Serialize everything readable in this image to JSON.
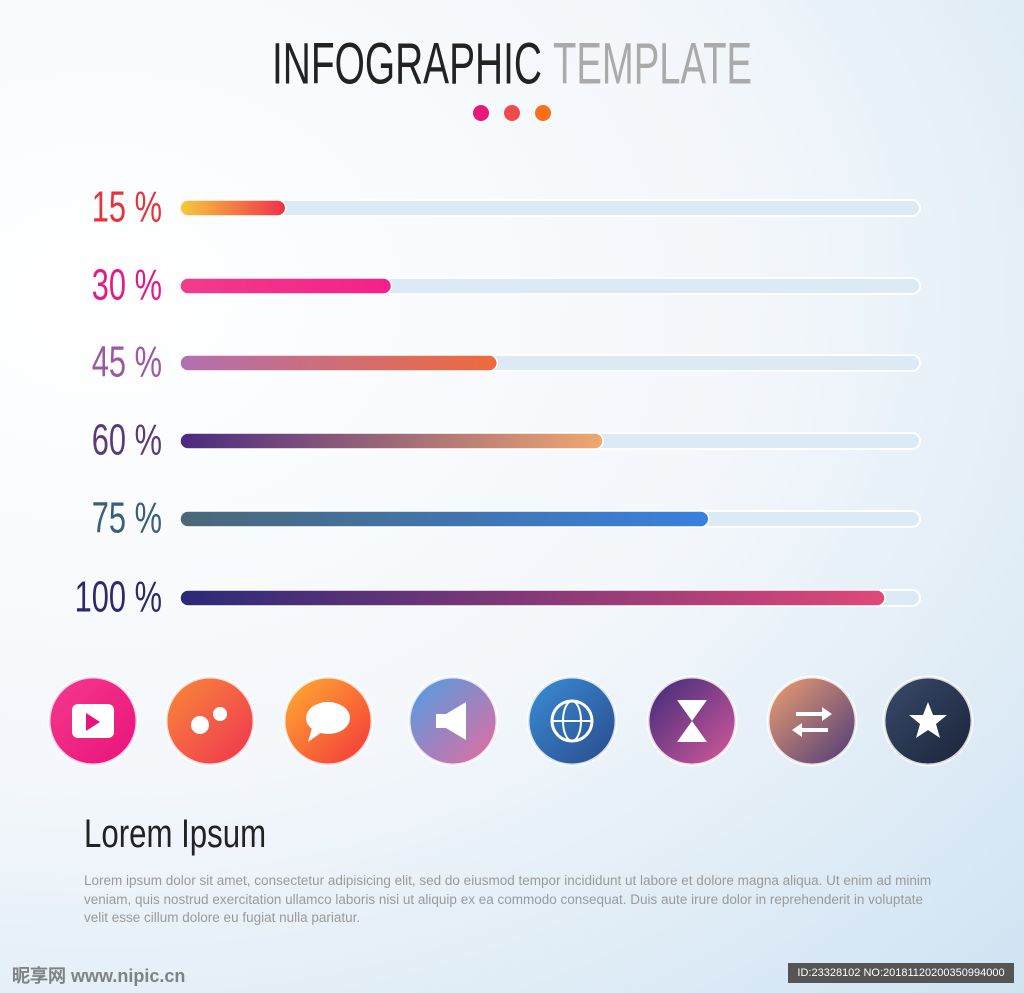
{
  "header": {
    "title_main": "INFOGRAPHIC",
    "title_accent": "TEMPLATE"
  },
  "chart_data": {
    "type": "bar",
    "orientation": "horizontal",
    "values": [
      15,
      30,
      45,
      60,
      75,
      100
    ],
    "value_labels": [
      "15 %",
      "30 %",
      "45 %",
      "60 %",
      "75 %",
      "100 %"
    ],
    "label_colors": [
      "#e8323c",
      "#e6198a",
      "#9b59a6",
      "#5b3a7a",
      "#3b5f7a",
      "#2c2a6b"
    ],
    "colors": [
      [
        "#f7c93c",
        "#f0304a"
      ],
      [
        "#f03c8a",
        "#f5208a"
      ],
      [
        "#b070b0",
        "#f06a3c"
      ],
      [
        "#4a2a80",
        "#f0a870"
      ],
      [
        "#4a6878",
        "#3a80e0"
      ],
      [
        "#2a2a78",
        "#e04878"
      ]
    ],
    "xlim": [
      0,
      100
    ]
  },
  "body": {
    "heading": "Lorem Ipsum",
    "paragraph": "Lorem ipsum dolor sit amet, consectetur adipisicing elit, sed do eiusmod tempor incididunt ut labore et dolore magna aliqua. Ut enim ad minim veniam, quis nostrud exercitation ullamco laboris nisi ut aliquip ex ea commodo consequat.  Duis aute irure dolor in reprehenderit in voluptate velit esse cillum dolore eu fugiat nulla pariatur."
  },
  "watermark": {
    "site": "昵享网 www.nipic.cn",
    "id": "ID:23328102 NO:20181120200350994000"
  }
}
